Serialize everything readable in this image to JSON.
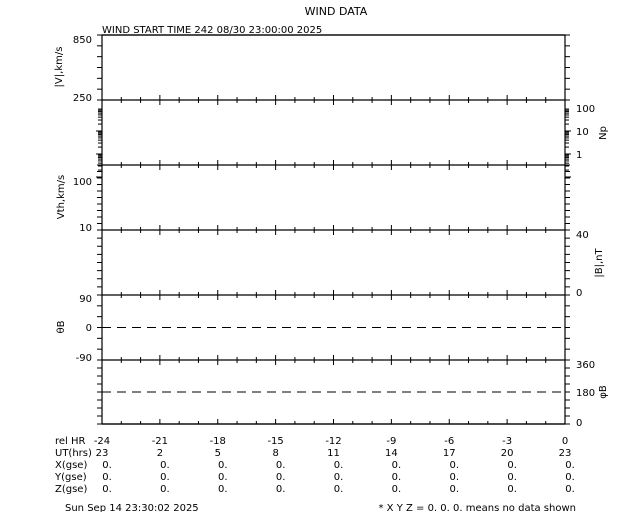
{
  "title": "WIND DATA",
  "start_time": "WIND START TIME 242 08/30 23:00:00 2025",
  "footer": {
    "timestamp": "Sun Sep 14 23:30:02 2025",
    "note": "* X Y Z = 0. 0. 0. means no data shown"
  },
  "chart_data": {
    "type": "line",
    "x_axis": {
      "range": [
        -24,
        0
      ],
      "row_labels": [
        "rel HR",
        "UT(hrs)",
        "X(gse)",
        "Y(gse)",
        "Z(gse)"
      ],
      "rel_hr": [
        "-24",
        "-21",
        "-18",
        "-15",
        "-12",
        "-9",
        "-6",
        "-3",
        "0"
      ],
      "ut_hrs": [
        "23",
        "2",
        "5",
        "8",
        "11",
        "14",
        "17",
        "20",
        "23"
      ],
      "x_gse": [
        "0.",
        "0.",
        "0.",
        "0.",
        "0.",
        "0.",
        "0.",
        "0.",
        "0."
      ],
      "y_gse": [
        "0.",
        "0.",
        "0.",
        "0.",
        "0.",
        "0.",
        "0.",
        "0.",
        "0."
      ],
      "z_gse": [
        "0.",
        "0.",
        "0.",
        "0.",
        "0.",
        "0.",
        "0.",
        "0.",
        "0."
      ]
    },
    "panels": [
      {
        "ylabel": "|V|,km/s",
        "side": "left",
        "scale": "linear",
        "ylim": [
          250,
          850
        ],
        "ticks": [
          "850",
          "250"
        ],
        "series": []
      },
      {
        "ylabel": "Np",
        "side": "right",
        "scale": "log",
        "ticks": [
          "100",
          "10",
          "1"
        ],
        "series": []
      },
      {
        "ylabel": "Vth,km/s",
        "side": "left",
        "scale": "log",
        "ticks": [
          "100",
          "10"
        ],
        "series": []
      },
      {
        "ylabel": "|B|,nT",
        "side": "right",
        "scale": "linear",
        "ylim": [
          0,
          40
        ],
        "ticks": [
          "40",
          "0"
        ],
        "series": []
      },
      {
        "ylabel": "θB",
        "side": "left",
        "scale": "linear",
        "ylim": [
          -90,
          90
        ],
        "ticks": [
          "90",
          "0",
          "-90"
        ],
        "reference_line": 0,
        "series": []
      },
      {
        "ylabel": "φB",
        "side": "right",
        "scale": "linear",
        "ylim": [
          0,
          360
        ],
        "ticks": [
          "360",
          "180",
          "0"
        ],
        "reference_line": 180,
        "series": []
      }
    ]
  }
}
